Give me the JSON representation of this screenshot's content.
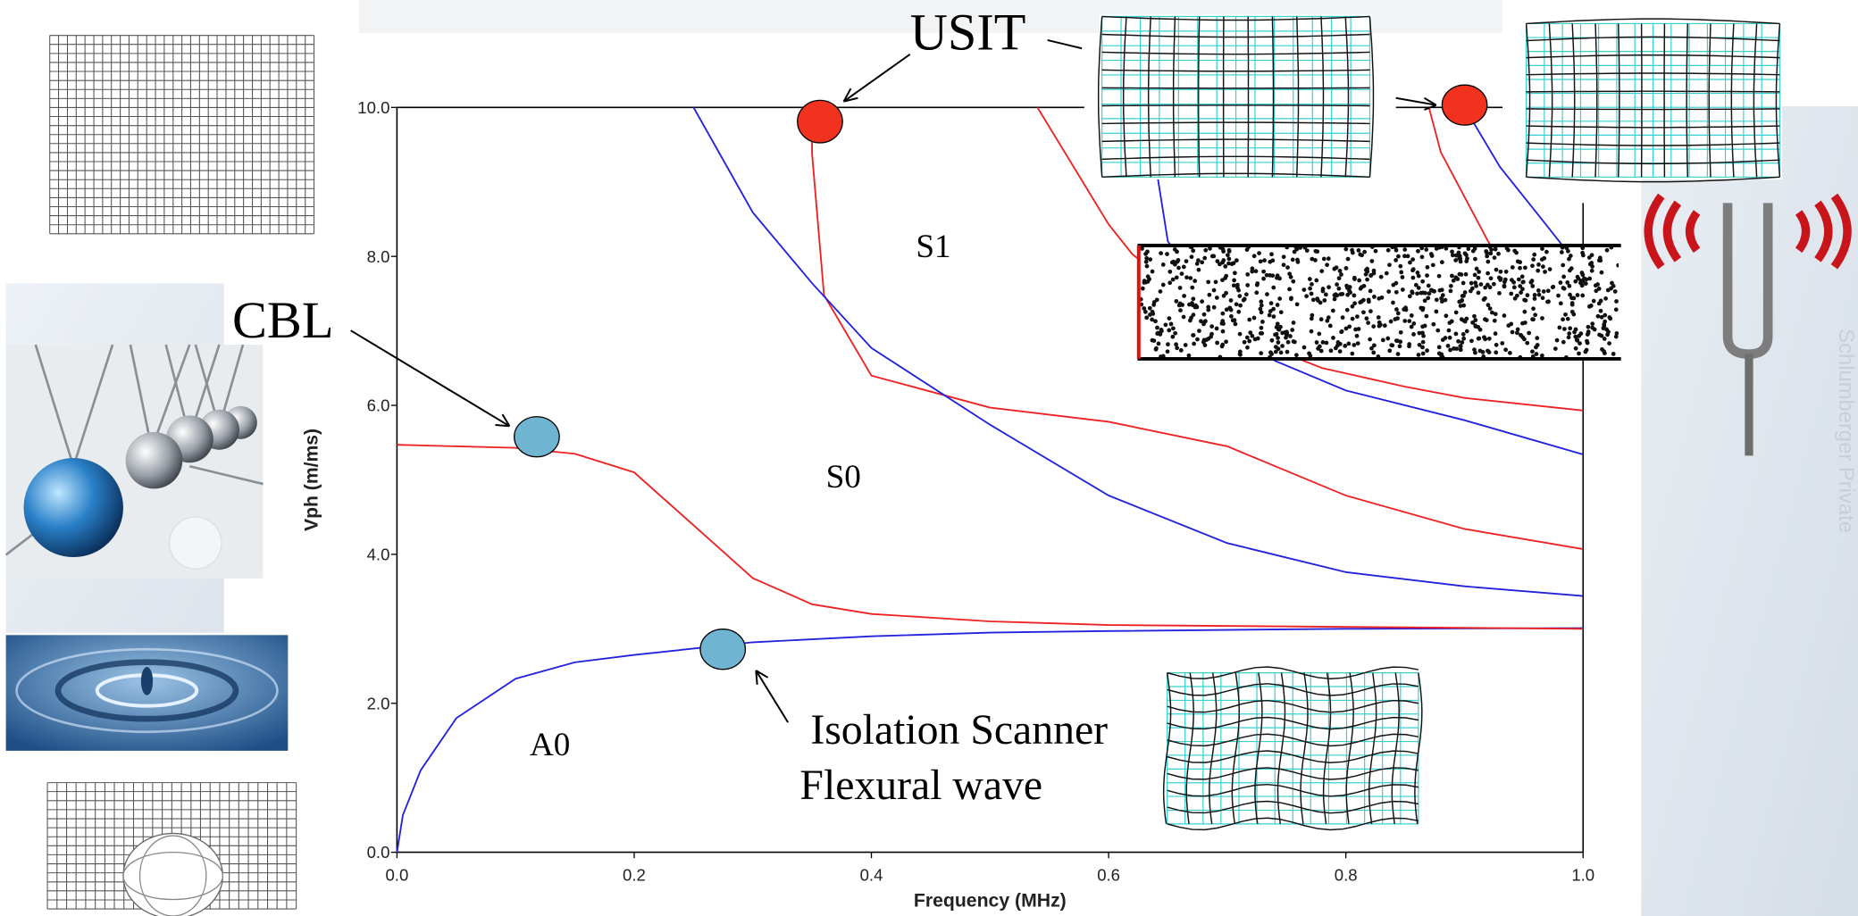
{
  "chart_data": {
    "type": "line",
    "xlabel": "Frequency (MHz)",
    "ylabel": "Vph (m/ms)",
    "xlim": [
      0,
      1
    ],
    "ylim": [
      0,
      10
    ],
    "xticks": [
      {
        "value": 0,
        "label": "0.0"
      },
      {
        "value": 0.2,
        "label": "0.2"
      },
      {
        "value": 0.4,
        "label": "0.4"
      },
      {
        "value": 0.6,
        "label": "0.6"
      },
      {
        "value": 0.8,
        "label": "0.8"
      },
      {
        "value": 1,
        "label": "1.0"
      }
    ],
    "yticks": [
      {
        "value": 0,
        "label": "0.0"
      },
      {
        "value": 2,
        "label": "2.0"
      },
      {
        "value": 4,
        "label": "4.0"
      },
      {
        "value": 6,
        "label": "6.0"
      },
      {
        "value": 8,
        "label": "8.0"
      },
      {
        "value": 10,
        "label": "10.0"
      }
    ],
    "series": [
      {
        "color": "#2222dd",
        "x": [
          0,
          0.005,
          0.02,
          0.05,
          0.1,
          0.15,
          0.2,
          0.3,
          0.4,
          0.5,
          0.6,
          0.8,
          1.0
        ],
        "values": [
          0,
          0.5,
          1.1,
          1.8,
          2.33,
          2.55,
          2.65,
          2.82,
          2.9,
          2.95,
          2.97,
          3.0,
          3.01
        ]
      },
      {
        "color": "#ee2222",
        "x": [
          0,
          0.1,
          0.15,
          0.2,
          0.25,
          0.3,
          0.35,
          0.4,
          0.5,
          0.6,
          1.0
        ],
        "values": [
          5.47,
          5.43,
          5.35,
          5.1,
          4.39,
          3.68,
          3.33,
          3.2,
          3.1,
          3.05,
          3.0
        ]
      },
      {
        "color": "#ee2222",
        "x": [
          0.35,
          0.35,
          0.36,
          0.4,
          0.5,
          0.6,
          0.7,
          0.8,
          0.9,
          1.0
        ],
        "values": [
          10,
          9.38,
          7.48,
          6.4,
          5.97,
          5.78,
          5.45,
          4.79,
          4.34,
          4.07
        ]
      },
      {
        "color": "#2222dd",
        "x": [
          0.25,
          0.3,
          0.35,
          0.4,
          0.5,
          0.6,
          0.7,
          0.8,
          0.9,
          1.0
        ],
        "values": [
          10,
          8.59,
          7.64,
          6.77,
          5.74,
          4.79,
          4.15,
          3.76,
          3.57,
          3.44
        ]
      },
      {
        "color": "#ee2222",
        "x": [
          0.54,
          0.6,
          0.62,
          0.7,
          0.78,
          0.85,
          0.9,
          1.0
        ],
        "values": [
          10,
          8.43,
          8.03,
          7.0,
          6.5,
          6.25,
          6.1,
          5.93
        ]
      },
      {
        "color": "#2222dd",
        "x": [
          0.63,
          0.64,
          0.65,
          0.7,
          0.74,
          0.8,
          0.9,
          1.0
        ],
        "values": [
          10,
          9.2,
          8.2,
          7.2,
          6.6,
          6.2,
          5.8,
          5.34
        ]
      },
      {
        "color": "#ee2222",
        "x": [
          0.87,
          0.88,
          0.9,
          0.92,
          0.95
        ],
        "values": [
          10,
          9.4,
          8.8,
          8.2,
          7.5
        ]
      },
      {
        "color": "#2222dd",
        "x": [
          0.9,
          0.93,
          0.96,
          0.98,
          1.0
        ],
        "values": [
          10,
          9.2,
          8.6,
          8.2,
          7.8
        ]
      }
    ]
  },
  "annotations": {
    "usit": "USIT",
    "cbl": "CBL",
    "s1": "S1",
    "s0": "S0",
    "a0": "A0",
    "isolation": "Isolation Scanner",
    "flexural": "Flexural wave",
    "watermark": "Schlumberger Private"
  }
}
